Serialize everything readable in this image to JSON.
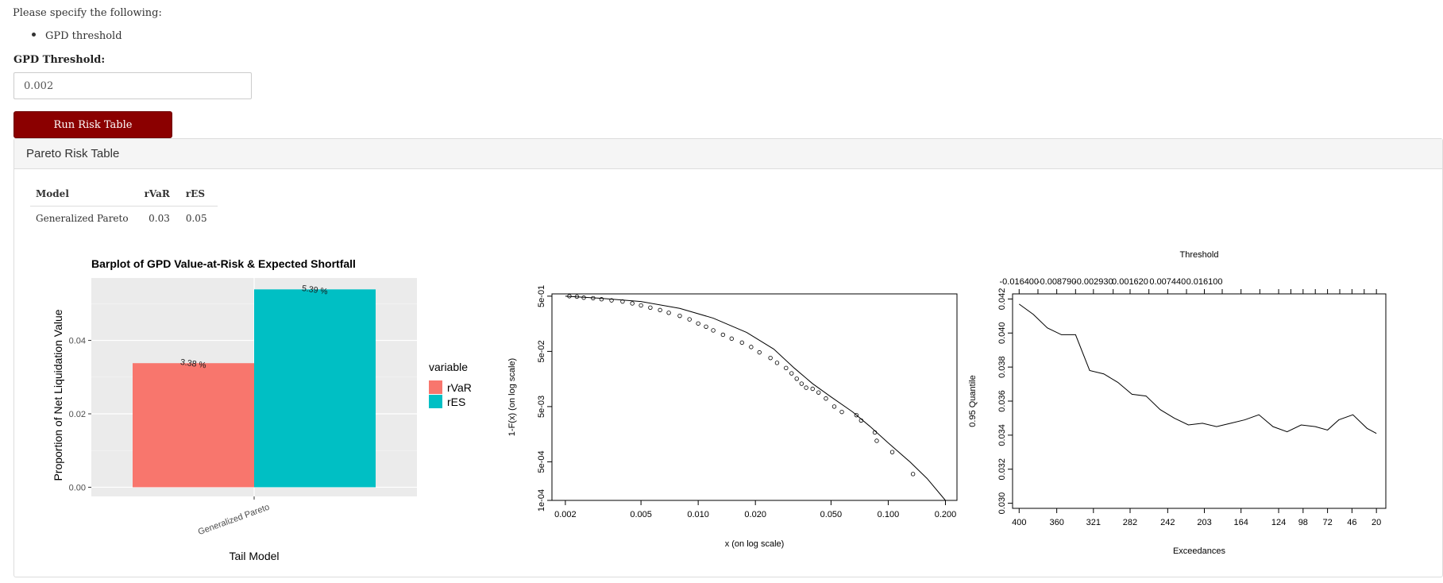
{
  "instructions": {
    "text": "Please specify the following:",
    "items": [
      "GPD threshold"
    ]
  },
  "threshold_input": {
    "label": "GPD Threshold:",
    "value": "0.002"
  },
  "run_button": {
    "label": "Run Risk Table"
  },
  "panel": {
    "title": "Pareto Risk Table",
    "table": {
      "headers": [
        "Model",
        "rVaR",
        "rES"
      ],
      "rows": [
        [
          "Generalized Pareto",
          "0.03",
          "0.05"
        ]
      ]
    }
  },
  "colors": {
    "accent": "#8b0000",
    "rVaR": "#F8766D",
    "rES": "#00BFC4"
  },
  "chart_data": [
    {
      "type": "bar",
      "title": "Barplot of GPD Value-at-Risk & Expected Shortfall",
      "xlabel": "Tail Model",
      "ylabel": "Proportion of Net Liquidation Value",
      "categories": [
        "Generalized Pareto"
      ],
      "series": [
        {
          "name": "rVaR",
          "values": [
            0.0338
          ],
          "label": "3.38 %"
        },
        {
          "name": "rES",
          "values": [
            0.0539
          ],
          "label": "5.39 %"
        }
      ],
      "ylim": [
        -0.0025,
        0.057
      ],
      "yticks": [
        0,
        0.02,
        0.04
      ],
      "ytick_labels": [
        "0.00",
        "0.02",
        "0.04"
      ],
      "legend": {
        "title": "variable",
        "position": "right"
      },
      "grid": true
    },
    {
      "type": "scatter",
      "xlabel": "x (on log scale)",
      "ylabel": "1-F(x) (on log scale)",
      "log_x": true,
      "log_y": true,
      "xlim": [
        0.0017,
        0.23
      ],
      "ylim": [
        0.0001,
        0.55
      ],
      "xticks": [
        0.002,
        0.005,
        0.01,
        0.02,
        0.05,
        0.1,
        0.2
      ],
      "xtick_labels": [
        "0.002",
        "0.005",
        "0.010",
        "0.020",
        "0.050",
        "0.100",
        "0.200"
      ],
      "yticks": [
        0.0001,
        0.0005,
        0.005,
        0.05,
        0.5
      ],
      "ytick_labels": [
        "1e-04",
        "5e-04",
        "5e-03",
        "5e-02",
        "5e-01"
      ],
      "points_x": [
        0.0021,
        0.0023,
        0.0025,
        0.0028,
        0.0031,
        0.0035,
        0.004,
        0.0045,
        0.005,
        0.0056,
        0.0063,
        0.007,
        0.008,
        0.009,
        0.01,
        0.011,
        0.012,
        0.0135,
        0.015,
        0.017,
        0.019,
        0.021,
        0.024,
        0.026,
        0.029,
        0.031,
        0.033,
        0.035,
        0.037,
        0.04,
        0.043,
        0.047,
        0.052,
        0.057,
        0.068,
        0.072,
        0.085,
        0.087,
        0.105,
        0.135
      ],
      "points_y": [
        0.5,
        0.49,
        0.47,
        0.46,
        0.44,
        0.42,
        0.4,
        0.37,
        0.34,
        0.31,
        0.28,
        0.25,
        0.22,
        0.19,
        0.16,
        0.14,
        0.12,
        0.1,
        0.085,
        0.072,
        0.06,
        0.048,
        0.038,
        0.031,
        0.025,
        0.02,
        0.016,
        0.013,
        0.011,
        0.0105,
        0.009,
        0.007,
        0.005,
        0.004,
        0.0035,
        0.0028,
        0.0017,
        0.0012,
        0.00075,
        0.0003
      ],
      "curve_x": [
        0.002,
        0.003,
        0.005,
        0.008,
        0.012,
        0.018,
        0.025,
        0.032,
        0.04,
        0.05,
        0.065,
        0.08,
        0.1,
        0.13,
        0.16,
        0.2
      ],
      "curve_y": [
        0.5,
        0.46,
        0.4,
        0.3,
        0.2,
        0.11,
        0.055,
        0.025,
        0.013,
        0.0075,
        0.004,
        0.0022,
        0.0011,
        0.0005,
        0.00025,
        0.0001
      ]
    },
    {
      "type": "line",
      "title": "Threshold",
      "xlabel": "Exceedances",
      "ylabel": "0.95 Quantile",
      "xlim": [
        407,
        10
      ],
      "ylim": [
        0.0297,
        0.0423
      ],
      "xticks": [
        400,
        360,
        321,
        282,
        242,
        203,
        164,
        124,
        98,
        72,
        46,
        20
      ],
      "top_ticks": [
        400,
        360,
        321,
        282,
        242,
        203
      ],
      "top_tick_labels": [
        "-0.016400",
        "-0.008790",
        "-0.002930",
        "0.001620",
        "0.007440",
        "0.016100"
      ],
      "top_minor_ticks": [
        400,
        380,
        360,
        340,
        321,
        300,
        282,
        262,
        242,
        222,
        203,
        184,
        164,
        144,
        124,
        111,
        98,
        85,
        72,
        59,
        46,
        33,
        20
      ],
      "yticks": [
        0.03,
        0.032,
        0.034,
        0.036,
        0.038,
        0.04,
        0.042
      ],
      "ytick_labels": [
        "0.030",
        "0.032",
        "0.034",
        "0.036",
        "0.038",
        "0.040",
        "0.042"
      ],
      "x": [
        400,
        385,
        370,
        355,
        340,
        325,
        310,
        295,
        280,
        265,
        250,
        235,
        220,
        205,
        190,
        175,
        160,
        145,
        130,
        115,
        100,
        85,
        72,
        60,
        45,
        30,
        20
      ],
      "y": [
        0.0417,
        0.0411,
        0.0403,
        0.0399,
        0.0399,
        0.0378,
        0.0376,
        0.0371,
        0.0364,
        0.0363,
        0.0355,
        0.035,
        0.0346,
        0.0347,
        0.0345,
        0.0347,
        0.0349,
        0.0352,
        0.0345,
        0.0342,
        0.0346,
        0.0345,
        0.0343,
        0.0349,
        0.0352,
        0.0344,
        0.0341
      ]
    }
  ]
}
